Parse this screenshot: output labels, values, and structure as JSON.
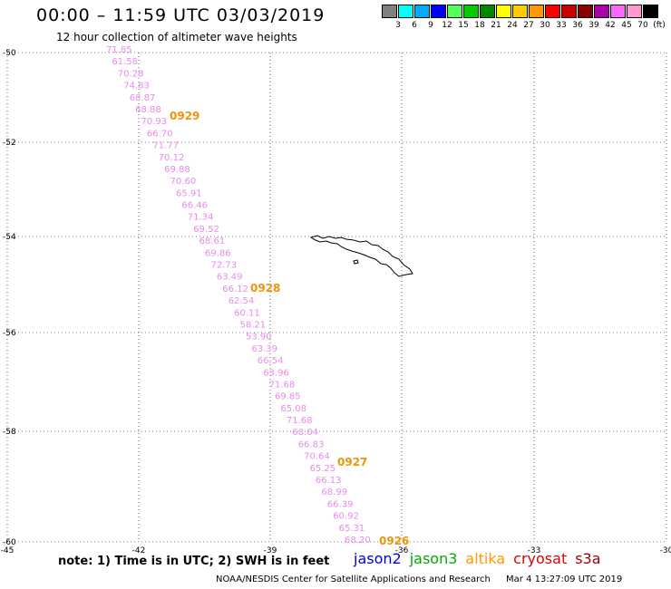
{
  "header": {
    "title": "00:00 – 11:59 UTC 03/03/2019",
    "subtitle": "12 hour collection of altimeter wave heights"
  },
  "legend": {
    "unit": "(ft)",
    "colors": [
      "#808080",
      "#00ffff",
      "#00aaff",
      "#0000ff",
      "#55ff55",
      "#00cc00",
      "#008800",
      "#ffff00",
      "#ffcc00",
      "#ff9900",
      "#ff0000",
      "#cc0000",
      "#880000",
      "#aa00aa",
      "#ff66ff",
      "#ff99cc",
      "#000000"
    ],
    "labels": [
      "3",
      "6",
      "9",
      "12",
      "15",
      "18",
      "21",
      "24",
      "27",
      "30",
      "33",
      "36",
      "39",
      "42",
      "45",
      "70"
    ]
  },
  "axes": {
    "x_ticks": [
      "-45",
      "-42",
      "-39",
      "-36",
      "-33",
      "-30"
    ],
    "y_ticks": [
      "-50",
      "-52",
      "-54",
      "-56",
      "-58",
      "-60"
    ]
  },
  "chart_data": {
    "type": "map",
    "lon_range": [
      -45,
      -30
    ],
    "lat_range": [
      -60,
      -50
    ],
    "grid": true,
    "wave_heights_ft": [
      "71.85",
      "61.58",
      "70.28",
      "74.83",
      "68.87",
      "68.88",
      "70.93",
      "66.70",
      "71.77",
      "70.12",
      "69.88",
      "70.60",
      "65.91",
      "66.46",
      "71.34",
      "69.52",
      "68.61",
      "69.86",
      "72.73",
      "63.49",
      "66.12",
      "62.54",
      "60.11",
      "58.21",
      "53.90",
      "63.39",
      "66.54",
      "63.96",
      "71.68",
      "69.85",
      "65.08",
      "71.68",
      "68.04",
      "66.83",
      "70.64",
      "65.25",
      "66.13",
      "68.99",
      "66.39",
      "60.92",
      "65.31",
      "68.20"
    ],
    "pass_times": [
      "0929",
      "0928",
      "0927",
      "0926"
    ]
  },
  "footer": {
    "note": "note: 1) Time is in UTC; 2) SWH is in feet",
    "missions": [
      {
        "name": "jason2",
        "color": "#0000dd"
      },
      {
        "name": "jason3",
        "color": "#00aa00"
      },
      {
        "name": "altika",
        "color": "#ff9900"
      },
      {
        "name": "cryosat",
        "color": "#dd0000"
      },
      {
        "name": "s3a",
        "color": "#990000"
      }
    ],
    "credit_left": "NOAA/NESDIS Center for Satellite Applications and Research",
    "credit_right": "Mar  4 13:27:09 UTC 2019"
  }
}
